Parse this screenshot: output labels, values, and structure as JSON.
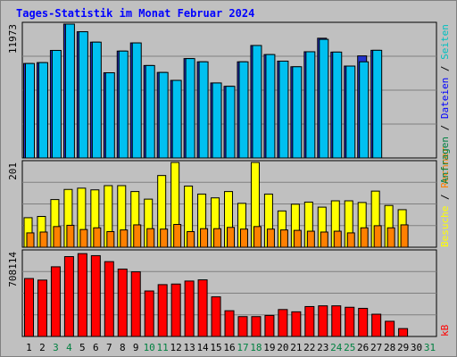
{
  "chart_data": {
    "type": "bar",
    "title": "Tages-Statistik im Monat Februar 2024",
    "categories": [
      "1",
      "2",
      "3",
      "4",
      "5",
      "6",
      "7",
      "8",
      "9",
      "10",
      "11",
      "12",
      "13",
      "14",
      "15",
      "16",
      "17",
      "18",
      "19",
      "20",
      "21",
      "22",
      "23",
      "24",
      "25",
      "26",
      "27",
      "28",
      "29",
      "30",
      "31"
    ],
    "weekend_color": "#008040",
    "default_label_color": "#000000",
    "weekend_days": [
      "3",
      "4",
      "10",
      "11",
      "17",
      "18",
      "24",
      "25",
      "31"
    ],
    "panels": [
      {
        "name": "top",
        "max_label": "11973",
        "ymax": 11973,
        "series": [
          {
            "name": "Anfragen",
            "color": "#2233cc",
            "values": [
              8450,
              8530,
              9620,
              11973,
              11290,
              10360,
              7620,
              9560,
              10290,
              8270,
              7650,
              6940,
              8890,
              8600,
              6710,
              6410,
              8600,
              10060,
              9250,
              8660,
              8160,
              9500,
              10710,
              9470,
              8220,
              9130,
              9630,
              null,
              null,
              null,
              null
            ]
          },
          {
            "name": "Dateien",
            "color": "#00c0f0",
            "values": [
              8450,
              8530,
              9620,
              11973,
              11290,
              10360,
              7620,
              9560,
              10290,
              8270,
              7650,
              6940,
              8890,
              8600,
              6710,
              6410,
              8600,
              10060,
              9250,
              8660,
              8160,
              9500,
              10610,
              9470,
              8220,
              8600,
              9630,
              null,
              null,
              null,
              null
            ]
          },
          {
            "name": "Seiten",
            "color": "#00c0c0",
            "values": []
          }
        ]
      },
      {
        "name": "middle",
        "max_label": "201",
        "ymax": 201,
        "series": [
          {
            "name": "Besuche",
            "color": "#ffff00",
            "values": [
              70,
              73,
              113,
              137,
              140,
              136,
              146,
              146,
              132,
              114,
              170,
              201,
              145,
              126,
              117,
              132,
              104,
              201,
              126,
              86,
              102,
              107,
              95,
              110,
              110,
              106,
              133,
              99,
              89,
              null,
              null
            ]
          },
          {
            "name": "Rechner",
            "color": "#ff8000",
            "values": [
              34,
              36,
              49,
              52,
              42,
              46,
              37,
              41,
              53,
              44,
              43,
              54,
              37,
              44,
              44,
              47,
              43,
              49,
              43,
              41,
              40,
              38,
              36,
              38,
              34,
              46,
              51,
              46,
              53,
              null,
              null
            ]
          }
        ]
      },
      {
        "name": "bottom",
        "max_label": "708114",
        "ymax": 708114,
        "series": [
          {
            "name": "kB",
            "color": "#ff0000",
            "values": [
              484000,
              471000,
              582000,
              667000,
              692000,
              675000,
              625000,
              563000,
              540000,
              380000,
              433000,
              438000,
              463000,
              473000,
              331000,
              215000,
              166000,
              166000,
              176000,
              225000,
              206000,
              250000,
              256000,
              256000,
              244000,
              235000,
              186000,
              127000,
              66000,
              null,
              null
            ]
          }
        ]
      }
    ],
    "right_labels": {
      "top": [
        {
          "text": "Anfragen",
          "color": "#008040"
        },
        {
          "text": " / ",
          "color": "#000000"
        },
        {
          "text": "Dateien",
          "color": "#0000ff"
        },
        {
          "text": " / ",
          "color": "#000000"
        },
        {
          "text": "Seiten",
          "color": "#00c0c0"
        }
      ],
      "middle": [
        {
          "text": "Besuche",
          "color": "#ffff00"
        },
        {
          "text": " / ",
          "color": "#000000"
        },
        {
          "text": "Rechner",
          "color": "#ff8000"
        }
      ],
      "bottom": [
        {
          "text": "kB",
          "color": "#ff0000"
        }
      ]
    },
    "colors": {
      "background": "#c0c0c0",
      "plot_bg": "#c0c0c0",
      "grid": "#808080",
      "title": "#0000ff"
    },
    "grid": true
  }
}
